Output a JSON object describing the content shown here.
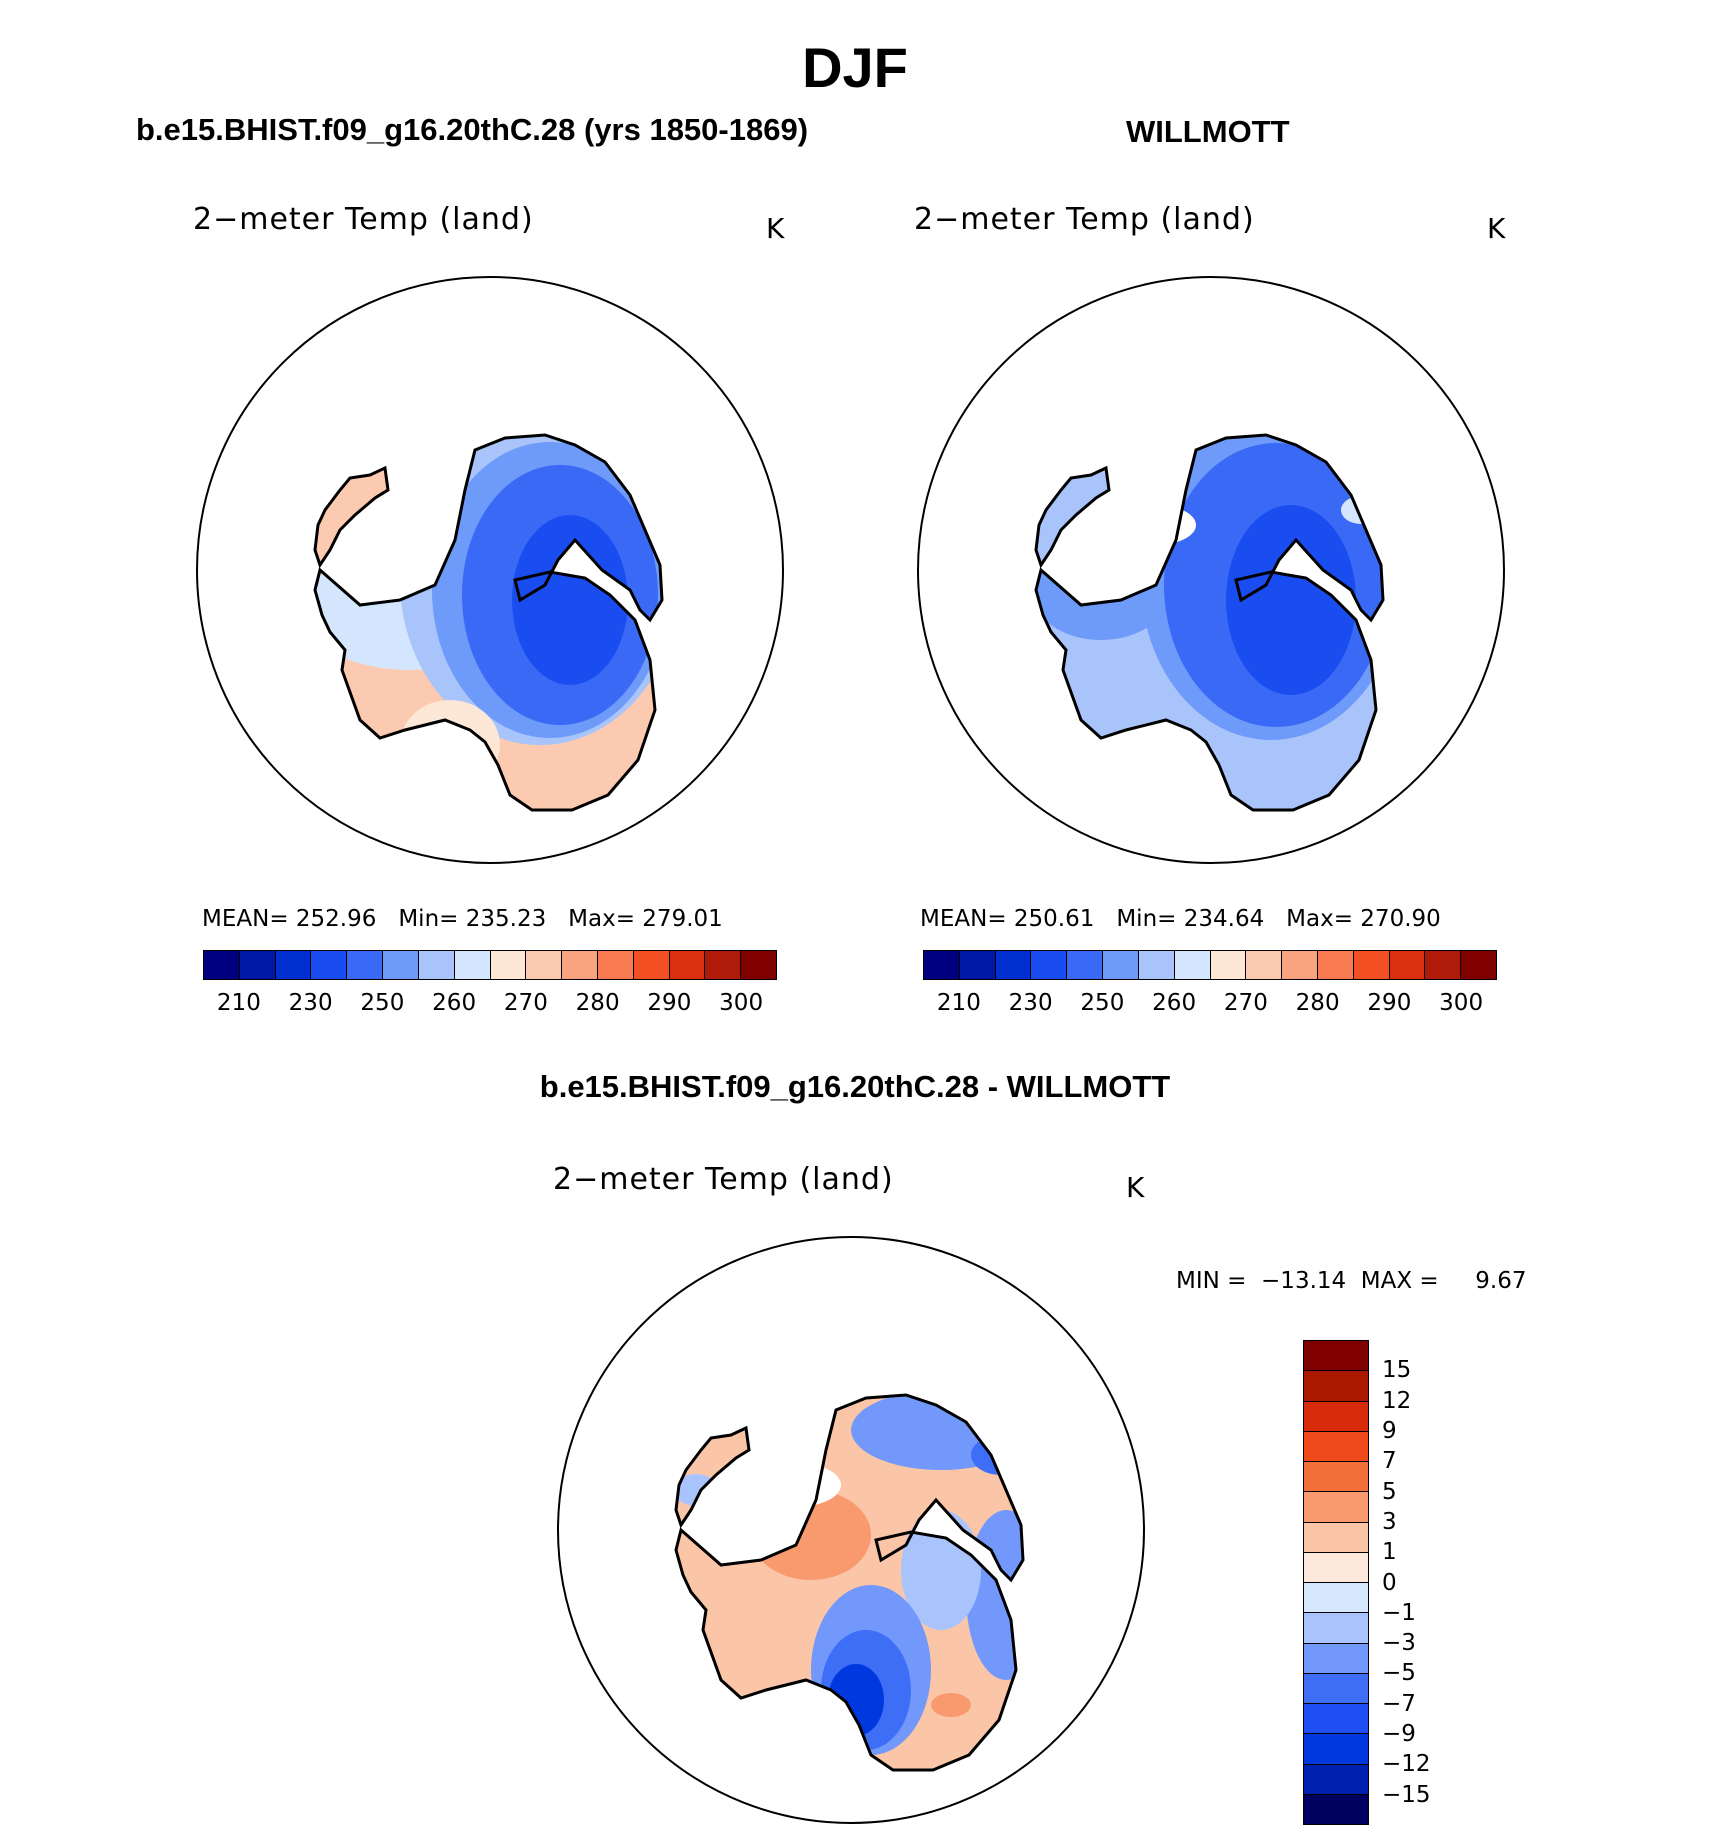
{
  "title": "DJF",
  "colors": {
    "abs_palette": [
      "#000080",
      "#0018a8",
      "#0030d0",
      "#1a4df0",
      "#3a6af5",
      "#6e9af9",
      "#a8c4fb",
      "#d4e6fd",
      "#fde8d8",
      "#fccab0",
      "#f9a47e",
      "#f77a50",
      "#f24f22",
      "#db3010",
      "#b01a08",
      "#800000"
    ],
    "diff_palette": [
      "#000060",
      "#0020b0",
      "#0038e0",
      "#1e4ef2",
      "#3e6ef5",
      "#7198fa",
      "#a9c4fc",
      "#d6e8fd",
      "#fde9dc",
      "#fbc6a8",
      "#f89a6e",
      "#f4703a",
      "#ef4a1c",
      "#d62a08",
      "#ac1800",
      "#800000"
    ]
  },
  "panels": {
    "model": {
      "title": "b.e15.BHIST.f09_g16.20thC.28 (yrs 1850-1869)",
      "field": "2−meter Temp (land)",
      "unit": "K",
      "stats": {
        "mean_label": "MEAN=",
        "mean": "252.96",
        "min_label": "Min=",
        "min": "235.23",
        "max_label": "Max=",
        "max": "279.01"
      },
      "colorbar_ticks": [
        "210",
        "230",
        "250",
        "260",
        "270",
        "280",
        "290",
        "300"
      ]
    },
    "obs": {
      "title": "WILLMOTT",
      "field": "2−meter Temp (land)",
      "unit": "K",
      "stats": {
        "mean_label": "MEAN=",
        "mean": "250.61",
        "min_label": "Min=",
        "min": "234.64",
        "max_label": "Max=",
        "max": "270.90"
      },
      "colorbar_ticks": [
        "210",
        "230",
        "250",
        "260",
        "270",
        "280",
        "290",
        "300"
      ]
    },
    "diff": {
      "title": "b.e15.BHIST.f09_g16.20thC.28 - WILLMOTT",
      "field": "2−meter Temp (land)",
      "unit": "K",
      "minmax": "MIN =  −13.14  MAX =     9.67",
      "colorbar_ticks": [
        "15",
        "12",
        "9",
        "7",
        "5",
        "3",
        "1",
        "0",
        "−1",
        "−3",
        "−5",
        "−7",
        "−9",
        "−12",
        "−15"
      ]
    }
  }
}
